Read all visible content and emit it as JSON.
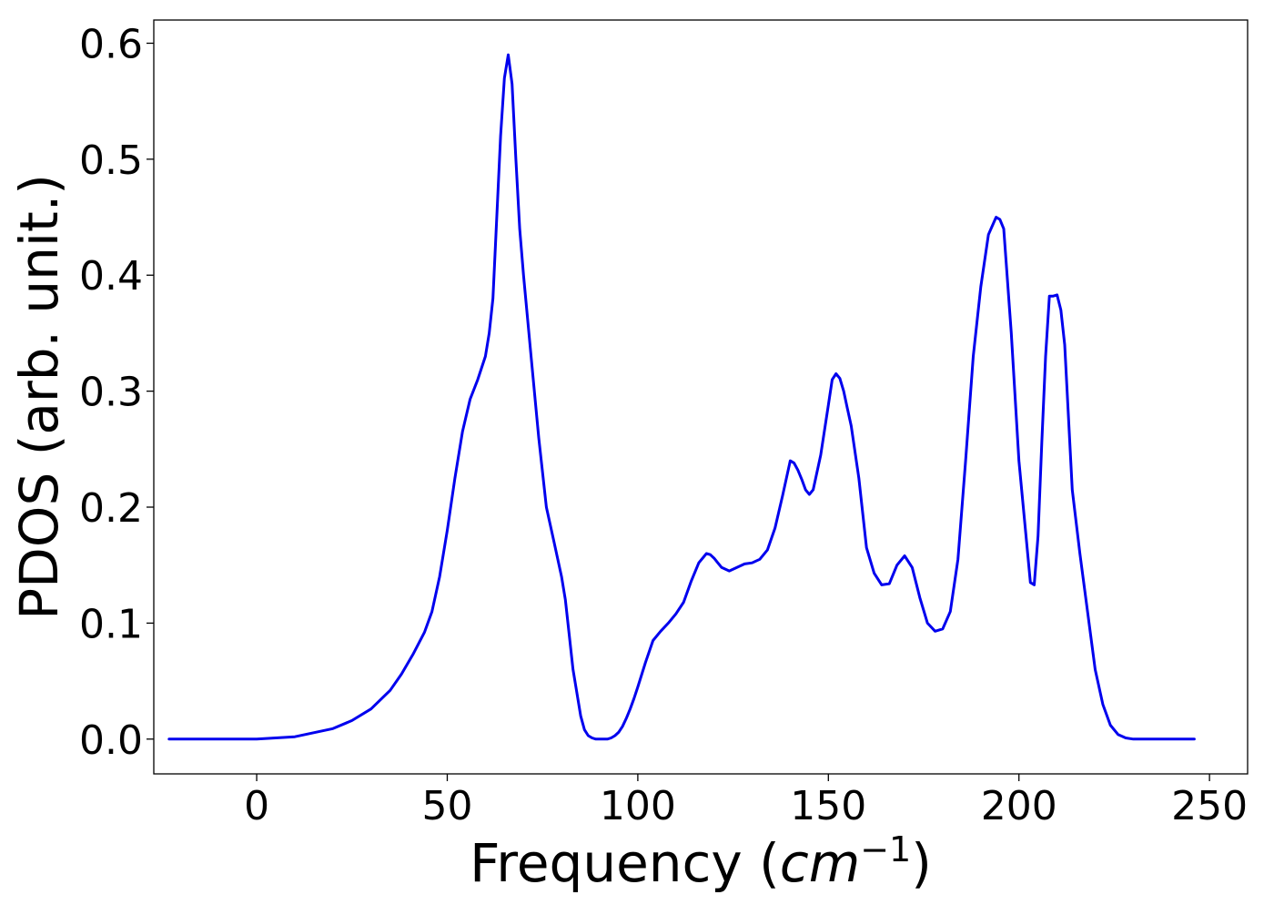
{
  "chart_data": {
    "type": "line",
    "xlabel_text": "Frequency (",
    "xlabel_math": "cm",
    "xlabel_sup": "−1",
    "xlabel_close": ")",
    "ylabel": "PDOS (arb. unit.)",
    "xlim": [
      -27,
      260
    ],
    "ylim": [
      -0.03,
      0.62
    ],
    "xticks": [
      0,
      50,
      100,
      150,
      200,
      250
    ],
    "yticks": [
      0.0,
      0.1,
      0.2,
      0.3,
      0.4,
      0.5,
      0.6
    ],
    "xtick_labels": [
      "0",
      "50",
      "100",
      "150",
      "200",
      "250"
    ],
    "ytick_labels": [
      "0.0",
      "0.1",
      "0.2",
      "0.3",
      "0.4",
      "0.5",
      "0.6"
    ],
    "grid": false,
    "series": [
      {
        "color": "#0000ee",
        "x": [
          -23,
          -10,
          0,
          10,
          20,
          25,
          30,
          35,
          38,
          41,
          44,
          46,
          48,
          50,
          52,
          54,
          56,
          58,
          60,
          61,
          62,
          63,
          64,
          65,
          66,
          67,
          68,
          69,
          70,
          72,
          74,
          76,
          78,
          80,
          81,
          82,
          83,
          84,
          85,
          86,
          87,
          88,
          89,
          90,
          91,
          92,
          93,
          94,
          95,
          96,
          97,
          98,
          99,
          100,
          102,
          104,
          106,
          108,
          110,
          112,
          114,
          116,
          118,
          119,
          120,
          121,
          122,
          124,
          126,
          128,
          130,
          132,
          134,
          136,
          138,
          139,
          140,
          141,
          142,
          143,
          144,
          145,
          146,
          148,
          150,
          151,
          152,
          153,
          154,
          155,
          156,
          158,
          160,
          162,
          164,
          166,
          168,
          170,
          172,
          174,
          176,
          178,
          180,
          182,
          184,
          186,
          188,
          190,
          192,
          194,
          195,
          196,
          198,
          200,
          202,
          203,
          204,
          205,
          206,
          207,
          208,
          209,
          210,
          211,
          212,
          214,
          216,
          218,
          220,
          222,
          224,
          226,
          228,
          230,
          240,
          246
        ],
        "y": [
          0.0,
          0.0,
          0.0,
          0.002,
          0.009,
          0.016,
          0.026,
          0.042,
          0.056,
          0.073,
          0.092,
          0.11,
          0.14,
          0.18,
          0.225,
          0.265,
          0.293,
          0.31,
          0.33,
          0.35,
          0.38,
          0.45,
          0.52,
          0.57,
          0.59,
          0.565,
          0.5,
          0.44,
          0.4,
          0.33,
          0.26,
          0.2,
          0.17,
          0.14,
          0.12,
          0.09,
          0.06,
          0.04,
          0.02,
          0.008,
          0.003,
          0.001,
          0.0,
          0.0,
          0.0,
          0.0,
          0.001,
          0.003,
          0.006,
          0.011,
          0.018,
          0.026,
          0.035,
          0.045,
          0.066,
          0.085,
          0.093,
          0.1,
          0.108,
          0.118,
          0.136,
          0.152,
          0.16,
          0.159,
          0.156,
          0.152,
          0.148,
          0.145,
          0.148,
          0.151,
          0.152,
          0.155,
          0.163,
          0.182,
          0.21,
          0.225,
          0.24,
          0.238,
          0.232,
          0.224,
          0.215,
          0.211,
          0.215,
          0.245,
          0.288,
          0.31,
          0.315,
          0.311,
          0.3,
          0.285,
          0.27,
          0.225,
          0.165,
          0.143,
          0.133,
          0.134,
          0.15,
          0.158,
          0.148,
          0.122,
          0.1,
          0.093,
          0.095,
          0.11,
          0.155,
          0.24,
          0.33,
          0.39,
          0.435,
          0.45,
          0.448,
          0.44,
          0.35,
          0.24,
          0.17,
          0.135,
          0.133,
          0.175,
          0.255,
          0.33,
          0.382,
          0.382,
          0.383,
          0.37,
          0.34,
          0.215,
          0.16,
          0.11,
          0.06,
          0.03,
          0.012,
          0.004,
          0.001,
          0.0,
          0.0,
          0.0
        ]
      }
    ]
  }
}
